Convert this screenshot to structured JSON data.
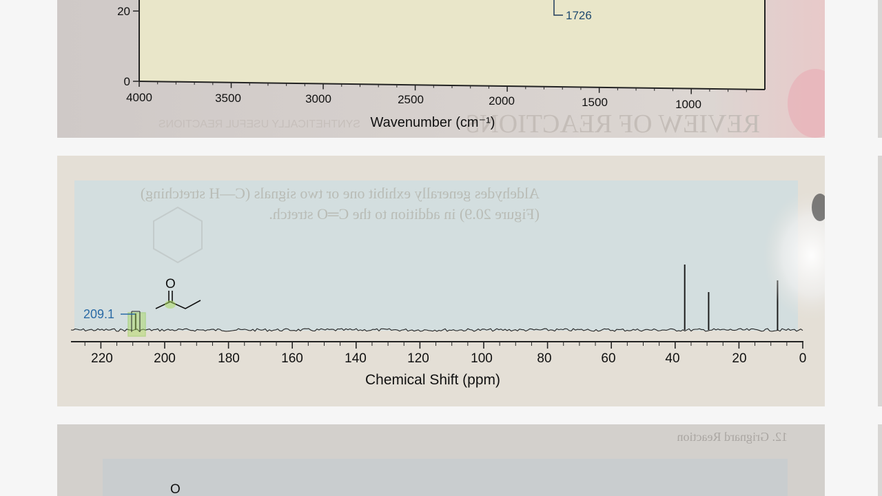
{
  "ir_spectrum": {
    "xlabel": "Wavenumber (cm⁻¹)",
    "x_ticks": [
      "4000",
      "3500",
      "3000",
      "2500",
      "2000",
      "1500",
      "1000"
    ],
    "y_ticks": [
      "20",
      "0"
    ],
    "annotation": "1726",
    "bleed_text": "REVIEW OF REACTIONS",
    "bleed_text_small": "SYNTHETICALLY USEFUL REACTIONS"
  },
  "nmr_spectrum": {
    "xlabel": "Chemical Shift (ppm)",
    "x_ticks": [
      "220",
      "200",
      "180",
      "160",
      "140",
      "120",
      "100",
      "80",
      "60",
      "40",
      "20",
      "0"
    ],
    "peak_label": "209.1",
    "structure_atom": "O",
    "bleed_text_line1": "Aldehydes generally exhibit one or two signals (C—H stretching)",
    "bleed_text_line2": "(Figure 20.9) in addition to the C═O stretch."
  },
  "bottom_panel": {
    "atom_label": "O",
    "bleed_text": "12. Grignard Reaction"
  },
  "chart_data": [
    {
      "type": "line",
      "title": "",
      "xlabel": "Wavenumber (cm⁻¹)",
      "ylabel": "",
      "xlim": [
        4000,
        650
      ],
      "ylim": [
        0,
        25
      ],
      "annotations": [
        {
          "text": "1726",
          "x": 1726
        }
      ]
    },
    {
      "type": "line",
      "title": "",
      "xlabel": "Chemical Shift (ppm)",
      "ylabel": "",
      "xlim": [
        230,
        0
      ],
      "peaks": [
        {
          "x": 209.1,
          "label": "209.1"
        },
        {
          "x": 37.0
        },
        {
          "x": 29.5
        },
        {
          "x": 7.9
        }
      ]
    }
  ]
}
